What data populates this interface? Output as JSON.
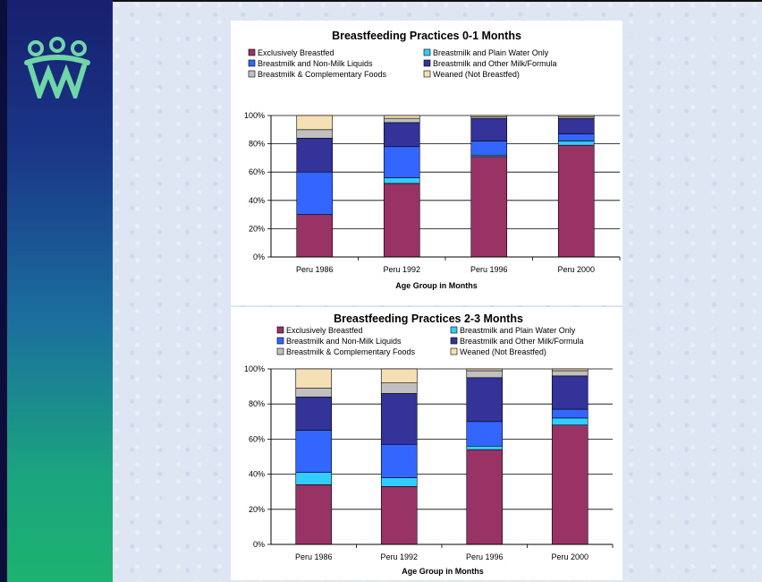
{
  "slide": {
    "colors": {
      "sidebar_top": "#18206f",
      "sidebar_bottom": "#1db26f",
      "background": "#dde6f2"
    },
    "logo_icon": "three-people-logo-icon"
  },
  "chart_data": [
    {
      "type": "bar",
      "stacked": true,
      "title": "Breastfeeding Practices 0-1 Months",
      "xlabel": "Age Group in Months",
      "ylabel": "",
      "ylim": [
        0,
        100
      ],
      "yticks": [
        "0%",
        "20%",
        "40%",
        "60%",
        "80%",
        "100%"
      ],
      "categories": [
        "Peru 1986",
        "Peru 1992",
        "Peru 1996",
        "Peru 2000"
      ],
      "series": [
        {
          "name": "Exclusively Breastfed",
          "color": "#993366",
          "values": [
            30,
            52,
            71,
            79
          ]
        },
        {
          "name": "Breastmilk and Plain Water Only",
          "color": "#33ccff",
          "values": [
            0,
            4,
            1,
            3
          ]
        },
        {
          "name": "Breastmilk and Non-Milk Liquids",
          "color": "#3366ff",
          "values": [
            30,
            22,
            10,
            5
          ]
        },
        {
          "name": "Breastmilk and Other Milk/Formula",
          "color": "#333399",
          "values": [
            24,
            17,
            16,
            11
          ]
        },
        {
          "name": "Breastmilk & Complementary Foods",
          "color": "#c0c0c0",
          "values": [
            6,
            3,
            1,
            1
          ]
        },
        {
          "name": "Weaned (Not Breastfed)",
          "color": "#f5dfb5",
          "values": [
            10,
            2,
            1,
            1
          ]
        }
      ],
      "legend": "top, two columns"
    },
    {
      "type": "bar",
      "stacked": true,
      "title": "Breastfeeding Practices 2-3 Months",
      "xlabel": "Age Group in Months",
      "ylabel": "",
      "ylim": [
        0,
        100
      ],
      "yticks": [
        "0%",
        "20%",
        "40%",
        "60%",
        "80%",
        "100%"
      ],
      "categories": [
        "Peru 1986",
        "Peru 1992",
        "Peru 1996",
        "Peru 2000"
      ],
      "series": [
        {
          "name": "Exclusively Breastfed",
          "color": "#993366",
          "values": [
            34,
            33,
            54,
            68
          ]
        },
        {
          "name": "Breastmilk and Plain Water Only",
          "color": "#33ccff",
          "values": [
            7,
            5,
            2,
            4
          ]
        },
        {
          "name": "Breastmilk and Non-Milk Liquids",
          "color": "#3366ff",
          "values": [
            24,
            19,
            14,
            5
          ]
        },
        {
          "name": "Breastmilk and Other Milk/Formula",
          "color": "#333399",
          "values": [
            19,
            29,
            25,
            19
          ]
        },
        {
          "name": "Breastmilk & Complementary Foods",
          "color": "#c0c0c0",
          "values": [
            5,
            6,
            4,
            3
          ]
        },
        {
          "name": "Weaned (Not Breastfed)",
          "color": "#f5dfb5",
          "values": [
            11,
            8,
            1,
            1
          ]
        }
      ],
      "legend": "top, two columns"
    }
  ]
}
